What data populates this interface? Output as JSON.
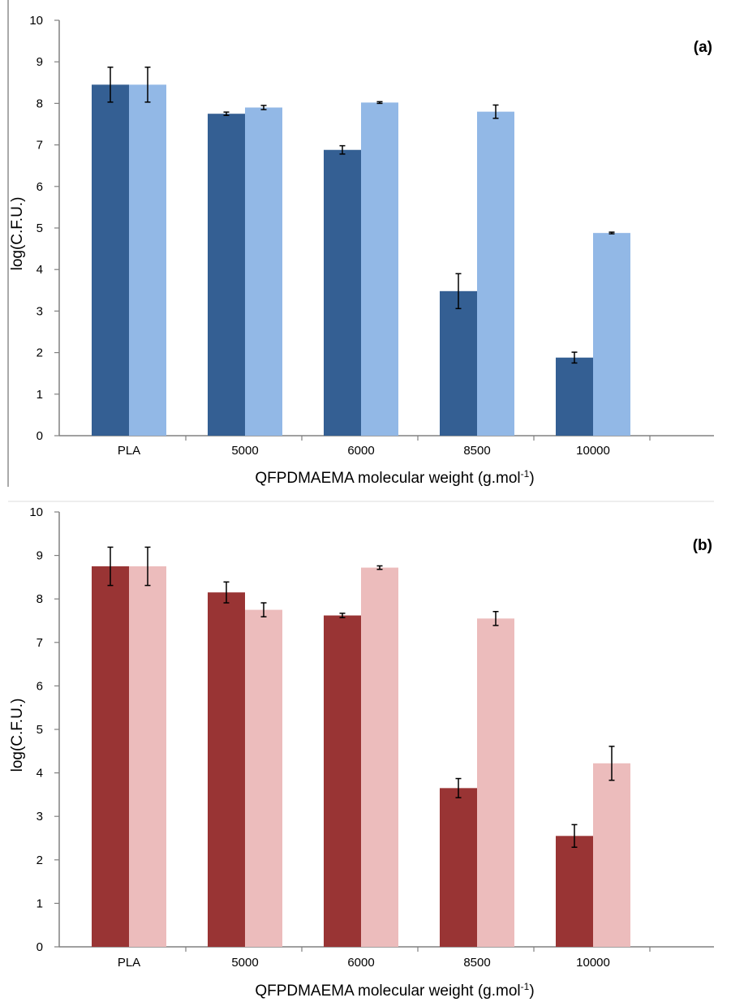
{
  "chart_data": [
    {
      "type": "bar",
      "panel_label": "(a)",
      "categories": [
        "PLA",
        "5000",
        "6000",
        "8500",
        "10000"
      ],
      "xlabel": "QFPDMAEMA molecular weight (g.mol",
      "xlabel_sup": "-1",
      "xlabel_end": ")",
      "ylabel": "log(C.F.U.)",
      "ylim": [
        0,
        10
      ],
      "yticks": [
        "0",
        "1",
        "2",
        "3",
        "4",
        "5",
        "6",
        "7",
        "8",
        "9",
        "10"
      ],
      "grid": false,
      "legend": "none",
      "colors": [
        "#345f93",
        "#92b8e6"
      ],
      "series": [
        {
          "values": [
            8.45,
            7.75,
            6.88,
            3.48,
            1.88
          ],
          "errors": [
            0.42,
            0.04,
            0.1,
            0.42,
            0.13
          ]
        },
        {
          "values": [
            8.45,
            7.9,
            8.02,
            7.8,
            4.88
          ],
          "errors": [
            0.42,
            0.05,
            0.02,
            0.16,
            0.02
          ]
        }
      ]
    },
    {
      "type": "bar",
      "panel_label": "(b)",
      "categories": [
        "PLA",
        "5000",
        "6000",
        "8500",
        "10000"
      ],
      "xlabel": "QFPDMAEMA molecular weight (g.mol",
      "xlabel_sup": "-1",
      "xlabel_end": ")",
      "ylabel": "log(C.F.U.)",
      "ylim": [
        0,
        10
      ],
      "yticks": [
        "0",
        "1",
        "2",
        "3",
        "4",
        "5",
        "6",
        "7",
        "8",
        "9",
        "10"
      ],
      "grid": false,
      "legend": "none",
      "colors": [
        "#993434",
        "#ecbcbc"
      ],
      "series": [
        {
          "values": [
            8.75,
            8.15,
            7.62,
            3.65,
            2.55
          ],
          "errors": [
            0.44,
            0.24,
            0.05,
            0.22,
            0.26
          ]
        },
        {
          "values": [
            8.75,
            7.75,
            8.72,
            7.55,
            4.22
          ],
          "errors": [
            0.44,
            0.16,
            0.04,
            0.16,
            0.39
          ]
        }
      ]
    }
  ]
}
